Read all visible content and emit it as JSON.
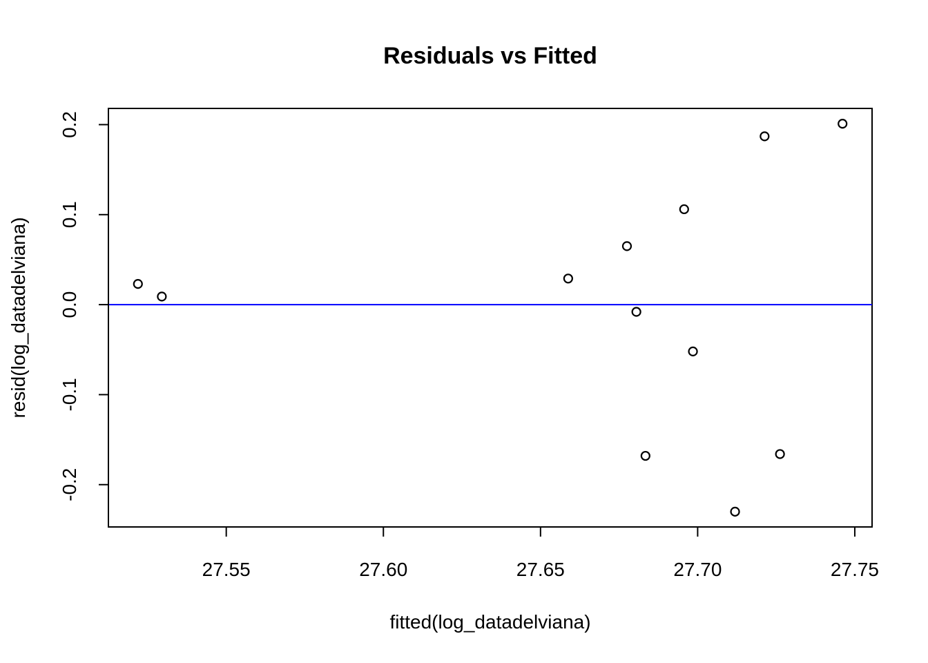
{
  "chart_data": {
    "type": "scatter",
    "title": "Residuals vs Fitted",
    "xlabel": "fitted(log_datadelviana)",
    "ylabel": "resid(log_datadelviana)",
    "xlim": [
      27.5125,
      27.7555
    ],
    "ylim": [
      -0.247,
      0.218
    ],
    "x_ticks": [
      27.55,
      27.6,
      27.65,
      27.7,
      27.75
    ],
    "x_tick_labels": [
      "27.55",
      "27.60",
      "27.65",
      "27.70",
      "27.75"
    ],
    "y_ticks": [
      -0.2,
      -0.1,
      0.0,
      0.1,
      0.2
    ],
    "y_tick_labels": [
      "-0.2",
      "-0.1",
      "0.0",
      "0.1",
      "0.2"
    ],
    "reference_line": {
      "y": 0,
      "color": "#0000ff"
    },
    "grid": false,
    "points": [
      {
        "x": 27.5219,
        "y": 0.023
      },
      {
        "x": 27.5295,
        "y": 0.009
      },
      {
        "x": 27.6588,
        "y": 0.029
      },
      {
        "x": 27.6775,
        "y": 0.065
      },
      {
        "x": 27.6805,
        "y": -0.008
      },
      {
        "x": 27.6834,
        "y": -0.168
      },
      {
        "x": 27.6957,
        "y": 0.106
      },
      {
        "x": 27.6985,
        "y": -0.052
      },
      {
        "x": 27.7119,
        "y": -0.23
      },
      {
        "x": 27.7213,
        "y": 0.187
      },
      {
        "x": 27.7262,
        "y": -0.166
      },
      {
        "x": 27.7461,
        "y": 0.201
      }
    ]
  }
}
